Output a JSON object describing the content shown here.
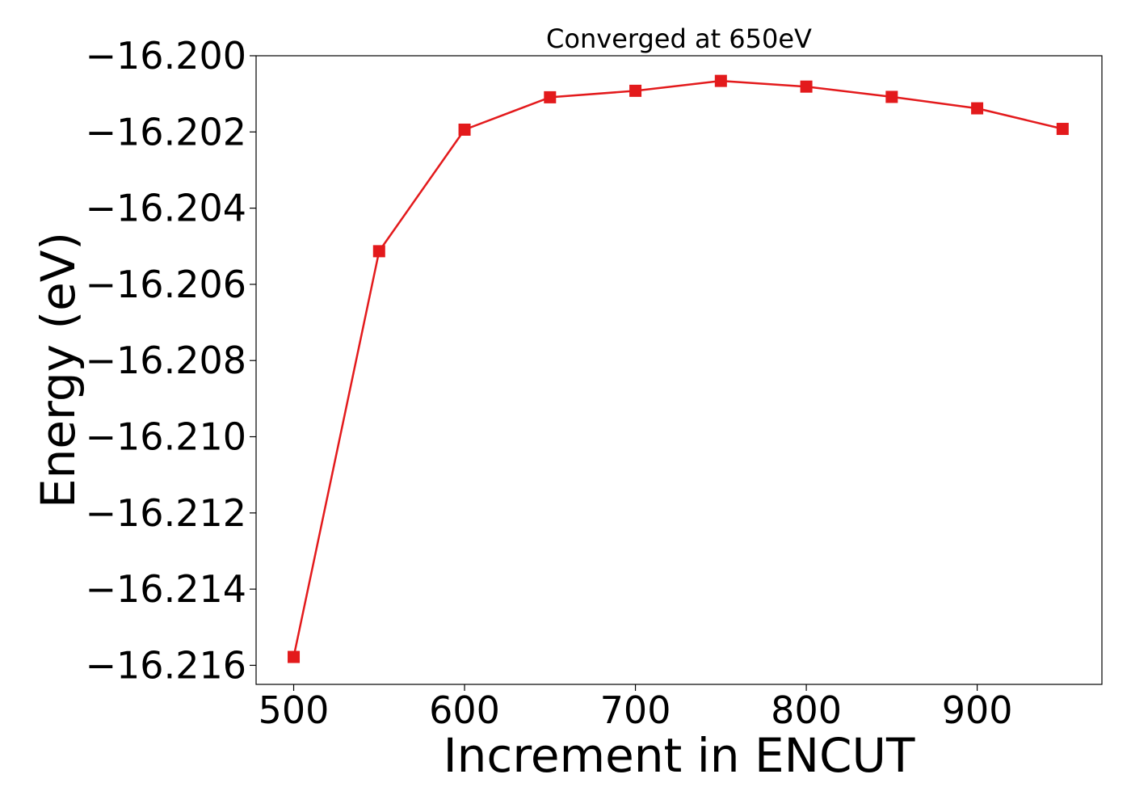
{
  "chart_data": {
    "type": "line",
    "title": "Converged at 650eV",
    "xlabel": "Increment in ENCUT",
    "ylabel": "Energy (eV)",
    "x": [
      500,
      550,
      600,
      650,
      700,
      750,
      800,
      850,
      900,
      950
    ],
    "series": [
      {
        "values": [
          -16.21578,
          -16.20513,
          -16.20194,
          -16.20109,
          -16.20092,
          -16.20066,
          -16.20081,
          -16.20108,
          -16.20138,
          -16.20192
        ],
        "color": "#e31a1c",
        "marker": "square"
      }
    ],
    "xlim": [
      478,
      973
    ],
    "ylim": [
      -16.2165,
      -16.2
    ],
    "x_ticks": [
      500,
      600,
      700,
      800,
      900
    ],
    "x_tick_labels": [
      "500",
      "600",
      "700",
      "800",
      "900"
    ],
    "y_ticks": [
      -16.2,
      -16.202,
      -16.204,
      -16.206,
      -16.208,
      -16.21,
      -16.212,
      -16.214,
      -16.216
    ],
    "y_tick_labels": [
      "−16.200",
      "−16.202",
      "−16.204",
      "−16.206",
      "−16.208",
      "−16.210",
      "−16.212",
      "−16.214",
      "−16.216"
    ],
    "grid": false,
    "legend": "none"
  }
}
